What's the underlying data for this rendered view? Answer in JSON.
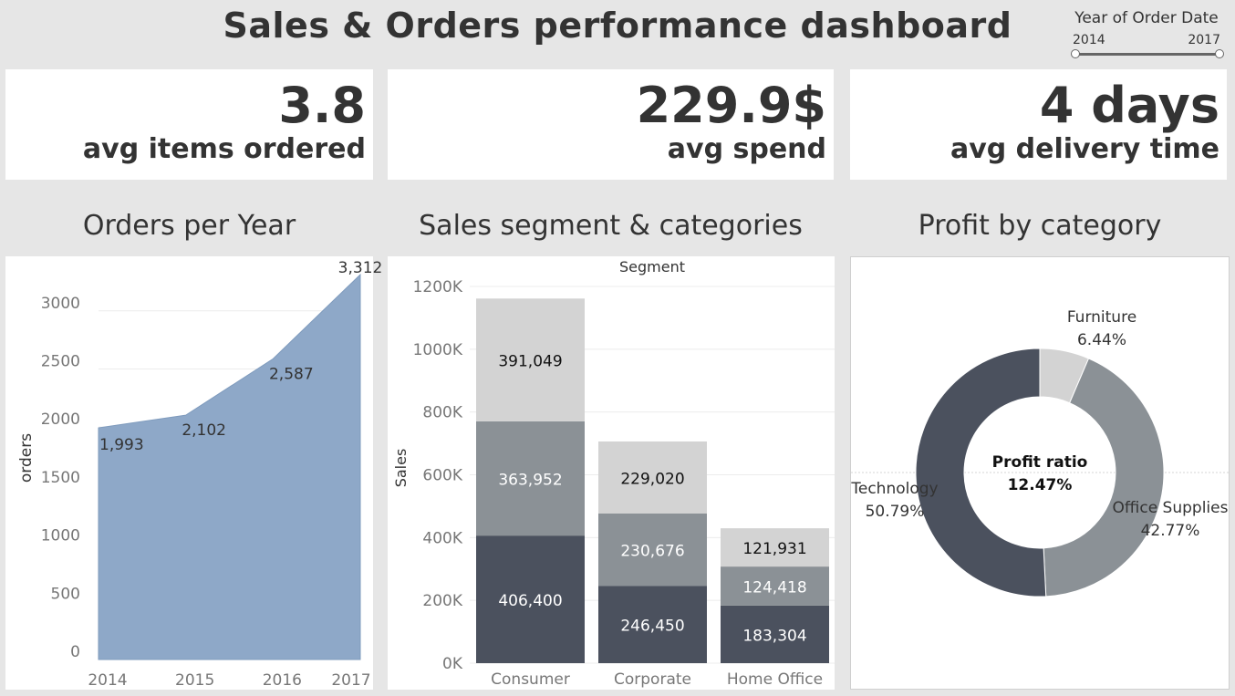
{
  "header": {
    "title": "Sales & Orders performance dashboard"
  },
  "filter": {
    "title": "Year of Order Date",
    "min_label": "2014",
    "max_label": "2017"
  },
  "kpis": [
    {
      "value": "3.8",
      "label": "avg items ordered"
    },
    {
      "value": "229.9$",
      "label": "avg spend"
    },
    {
      "value": "4 days",
      "label": "avg delivery time"
    }
  ],
  "panels": {
    "orders_title": "Orders per Year",
    "sales_title": "Sales segment & categories",
    "profit_title": "Profit by category"
  },
  "colors": {
    "area": "#8ea8c8",
    "tech": "#4b515e",
    "office": "#8b9196",
    "furniture": "#d3d3d3"
  },
  "chart_data": [
    {
      "type": "area",
      "title": "Orders per Year",
      "ylabel": "orders",
      "xlabel": "",
      "x": [
        "2014",
        "2015",
        "2016",
        "2017"
      ],
      "values": [
        1993,
        2102,
        2587,
        3312
      ],
      "value_labels": [
        "1,993",
        "2,102",
        "2,587",
        "3,312"
      ],
      "ylim": [
        0,
        3312
      ],
      "yticks": [
        0,
        500,
        1000,
        1500,
        2000,
        2500,
        3000
      ],
      "ytick_labels": [
        "0",
        "500",
        "1000",
        "1500",
        "2000",
        "2500",
        "3000"
      ],
      "grid": true
    },
    {
      "type": "bar",
      "stacked": true,
      "title": "Sales segment & categories",
      "column_header": "Segment",
      "ylabel": "Sales",
      "categories": [
        "Consumer",
        "Corporate",
        "Home Office"
      ],
      "series": [
        {
          "values": [
            406400,
            246450,
            183304
          ],
          "labels": [
            "406,400",
            "246,450",
            "183,304"
          ]
        },
        {
          "values": [
            363952,
            230676,
            124418
          ],
          "labels": [
            "363,952",
            "230,676",
            "124,418"
          ]
        },
        {
          "values": [
            391049,
            229020,
            121931
          ],
          "labels": [
            "391,049",
            "229,020",
            "121,931"
          ]
        }
      ],
      "ylim": [
        0,
        1200000
      ],
      "yticks": [
        0,
        200000,
        400000,
        600000,
        800000,
        1000000,
        1200000
      ],
      "ytick_labels": [
        "0K",
        "200K",
        "400K",
        "600K",
        "800K",
        "1000K",
        "1200K"
      ],
      "grid": true
    },
    {
      "type": "pie",
      "donut": true,
      "title": "Profit by category",
      "center_label": "Profit ratio",
      "center_value": "12.47%",
      "slices": [
        {
          "name": "Furniture",
          "value": 6.44,
          "label": "6.44%"
        },
        {
          "name": "Office Supplies",
          "value": 42.77,
          "label": "42.77%"
        },
        {
          "name": "Technology",
          "value": 50.79,
          "label": "50.79%"
        }
      ]
    }
  ]
}
